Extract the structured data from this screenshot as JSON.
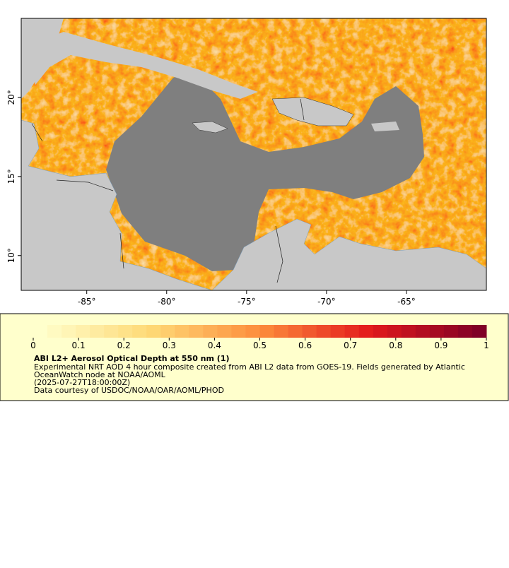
{
  "map": {
    "xlim": [
      -89.1,
      -60
    ],
    "ylim": [
      7.8,
      25
    ],
    "xticks": [
      {
        "value": -85,
        "label": "-85°"
      },
      {
        "value": -80,
        "label": "-80°"
      },
      {
        "value": -75,
        "label": "-75°"
      },
      {
        "value": -70,
        "label": "-70°"
      },
      {
        "value": -65,
        "label": "-65°"
      }
    ],
    "yticks": [
      {
        "value": 10,
        "label": "10°"
      },
      {
        "value": 15,
        "label": "15°"
      },
      {
        "value": 20,
        "label": "20°"
      }
    ]
  },
  "colorbar": {
    "lim": [
      0,
      1
    ],
    "ticks": [
      0,
      0.1,
      0.2,
      0.3,
      0.4,
      0.5,
      0.6,
      0.7,
      0.8,
      0.9,
      1
    ]
  },
  "legend": {
    "title": "ABI L2+ Aerosol Optical Depth at 550 nm (1)",
    "lines": [
      "Experimental NRT AOD 4 hour composite created from ABI L2 data from GOES-19. Fields generated by Atlantic",
      "OceanWatch node at NOAA/AOML",
      "(2025-07-27T18:00:00Z)",
      "Data courtesy of USDOC/NOAA/OAR/AOML/PHOD"
    ]
  }
}
